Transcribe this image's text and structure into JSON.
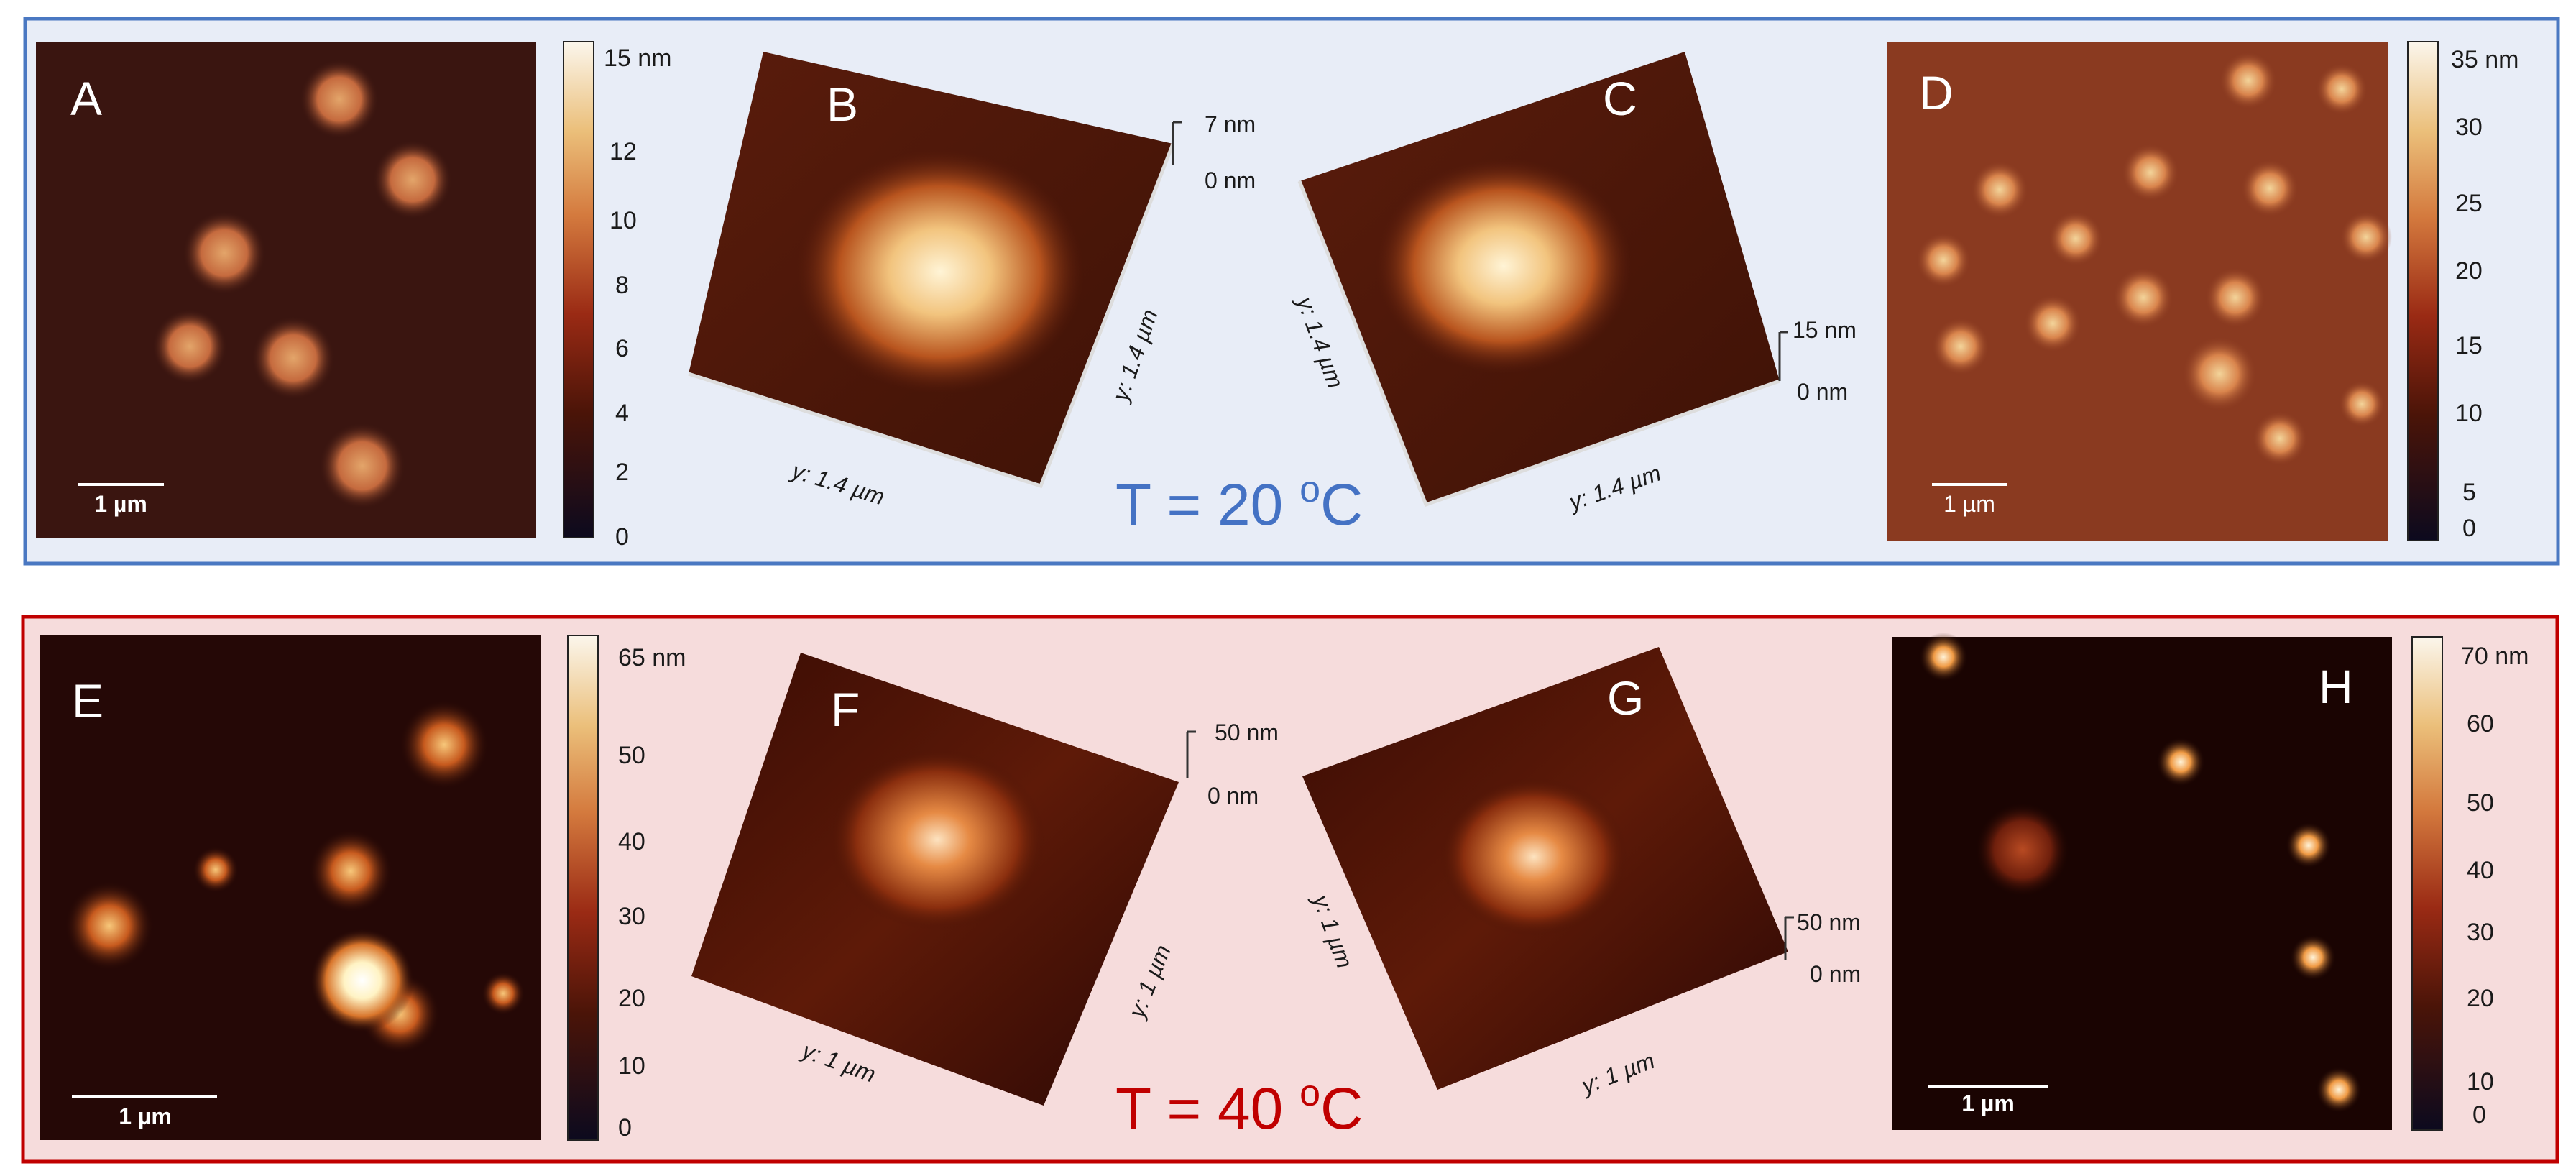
{
  "panels": {
    "A": {
      "letter": "A",
      "scale": "1 µm"
    },
    "B": {
      "letter": "B",
      "zmax": "7 nm",
      "zmin": "0 nm",
      "axis_left": "y: 1.4 µm",
      "axis_right": "y: 1.4 µm"
    },
    "C": {
      "letter": "C",
      "zmax": "15 nm",
      "zmin": "0 nm",
      "axis_left": "y: 1.4 µm",
      "axis_right": "y: 1.4 µm"
    },
    "D": {
      "letter": "D",
      "scale": "1 µm"
    },
    "E": {
      "letter": "E",
      "scale": "1 µm"
    },
    "F": {
      "letter": "F",
      "zmax": "50 nm",
      "zmin": "0 nm",
      "axis_left": "y: 1 µm",
      "axis_right": "y: 1 µm"
    },
    "G": {
      "letter": "G",
      "zmax": "50 nm",
      "zmin": "0 nm",
      "axis_left": "y: 1 µm",
      "axis_right": "y: 1 µm"
    },
    "H": {
      "letter": "H",
      "scale": "1 µm"
    }
  },
  "colorbars": {
    "A": [
      "15 nm",
      "12",
      "10",
      "8",
      "6",
      "4",
      "2",
      "0"
    ],
    "D": [
      "35 nm",
      "30",
      "25",
      "20",
      "15",
      "10",
      "5",
      "0"
    ],
    "E": [
      "65 nm",
      "50",
      "40",
      "30",
      "20",
      "10",
      "0"
    ],
    "H": [
      "70 nm",
      "60",
      "50",
      "40",
      "30",
      "20",
      "10",
      "0"
    ]
  },
  "titles": {
    "top": {
      "main": "T = 20 ",
      "sup": "o",
      "unit": "C"
    },
    "bottom": {
      "main": "T = 40 ",
      "sup": "o",
      "unit": "C"
    }
  },
  "colors": {
    "top_frame": "#4a78c2",
    "top_bg": "#e8edf7",
    "bottom_frame": "#c00000",
    "bottom_bg": "#f6dcdc",
    "top_title": "#4472c4",
    "bottom_title": "#c00000"
  }
}
